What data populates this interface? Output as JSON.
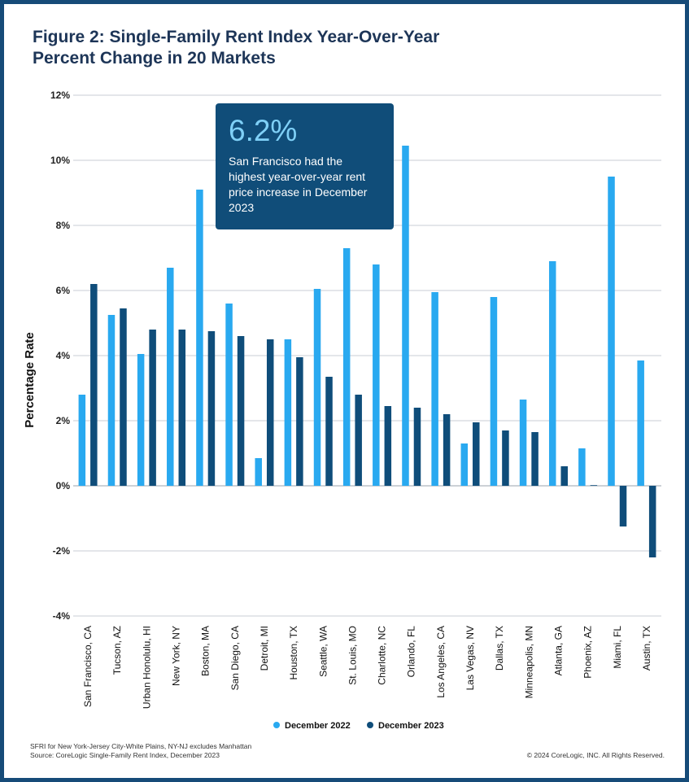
{
  "title": {
    "line1": "Figure 2: Single-Family Rent Index Year-Over-Year",
    "line2": "Percent Change in 20 Markets"
  },
  "callout": {
    "value": "6.2%",
    "text": "San Francisco had the highest year-over-year rent price increase in December 2023"
  },
  "footnote": {
    "line1": "SFRI for New York-Jersey City-White Plains, NY-NJ excludes Manhattan",
    "line2": "Source: CoreLogic Single-Family Rent Index, December 2023"
  },
  "copyright": "© 2024 CoreLogic, INC. All Rights Reserved.",
  "colors": {
    "series1": "#29a9f0",
    "series2": "#0f4d7a",
    "frame": "#164b78",
    "grid": "#c8ced6"
  },
  "chart_data": {
    "type": "bar",
    "title": "Figure 2: Single-Family Rent Index Year-Over-Year Percent Change in 20 Markets",
    "xlabel": "",
    "ylabel": "Percentage Rate",
    "ylim": [
      -4,
      12
    ],
    "yticks": [
      -4,
      -2,
      0,
      2,
      4,
      6,
      8,
      10,
      12
    ],
    "ytick_labels": [
      "-4%",
      "-2%",
      "0%",
      "2%",
      "4%",
      "6%",
      "8%",
      "10%",
      "12%"
    ],
    "grid": true,
    "legend_position": "bottom",
    "categories": [
      "San Francisco, CA",
      "Tucson, AZ",
      "Urban Honolulu, HI",
      "New York, NY",
      "Boston, MA",
      "San Diego, CA",
      "Detroit, MI",
      "Houston, TX",
      "Seattle, WA",
      "St. Louis, MO",
      "Charlotte, NC",
      "Orlando, FL",
      "Los Angeles, CA",
      "Las Vegas, NV",
      "Dallas, TX",
      "Minneapolis, MN",
      "Atlanta, GA",
      "Phoenix, AZ",
      "Miami, FL",
      "Austin, TX"
    ],
    "series": [
      {
        "name": "December 2022",
        "values": [
          2.8,
          5.25,
          4.05,
          6.7,
          9.1,
          5.6,
          0.85,
          4.5,
          6.05,
          7.3,
          6.8,
          10.45,
          5.95,
          1.3,
          5.8,
          2.65,
          6.9,
          1.15,
          9.5,
          3.85
        ]
      },
      {
        "name": "December 2023",
        "values": [
          6.2,
          5.45,
          4.8,
          4.8,
          4.75,
          4.6,
          4.5,
          3.95,
          3.35,
          2.8,
          2.45,
          2.4,
          2.2,
          1.95,
          1.7,
          1.65,
          0.6,
          0.02,
          -1.25,
          -2.2
        ]
      }
    ]
  }
}
